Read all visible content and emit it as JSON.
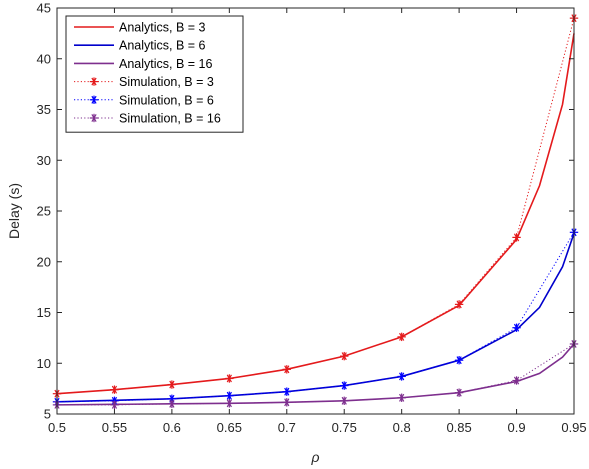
{
  "chart_data": {
    "type": "line",
    "title": "",
    "xlabel": "ρ",
    "ylabel": "Delay (s)",
    "xlim": [
      0.5,
      0.95
    ],
    "ylim": [
      5,
      45
    ],
    "xticks": [
      "0.5",
      "0.55",
      "0.6",
      "0.65",
      "0.7",
      "0.75",
      "0.8",
      "0.85",
      "0.9",
      "0.95"
    ],
    "yticks": [
      "5",
      "10",
      "15",
      "20",
      "25",
      "30",
      "35",
      "40",
      "45"
    ],
    "grid": false,
    "legend_position": "top-left",
    "x": [
      0.5,
      0.55,
      0.6,
      0.65,
      0.7,
      0.75,
      0.8,
      0.85,
      0.9,
      0.95
    ],
    "series": [
      {
        "name": "Analytics, B = 3",
        "style": "solid",
        "color": "#e41a1c",
        "x": [
          0.5,
          0.55,
          0.6,
          0.65,
          0.7,
          0.75,
          0.8,
          0.85,
          0.9,
          0.92,
          0.94,
          0.95
        ],
        "values": [
          7.0,
          7.4,
          7.9,
          8.5,
          9.4,
          10.7,
          12.6,
          15.7,
          22.2,
          27.5,
          35.5,
          42.5
        ]
      },
      {
        "name": "Analytics, B = 6",
        "style": "solid",
        "color": "#0000cc",
        "x": [
          0.5,
          0.55,
          0.6,
          0.65,
          0.7,
          0.75,
          0.8,
          0.85,
          0.9,
          0.92,
          0.94,
          0.95
        ],
        "values": [
          6.2,
          6.35,
          6.5,
          6.8,
          7.2,
          7.8,
          8.7,
          10.3,
          13.3,
          15.5,
          19.5,
          22.8
        ]
      },
      {
        "name": "Analytics, B = 16",
        "style": "solid",
        "color": "#7e2f8e",
        "x": [
          0.5,
          0.55,
          0.6,
          0.65,
          0.7,
          0.75,
          0.8,
          0.85,
          0.9,
          0.92,
          0.94,
          0.95
        ],
        "values": [
          5.9,
          5.95,
          6.0,
          6.05,
          6.15,
          6.3,
          6.6,
          7.1,
          8.2,
          9.0,
          10.6,
          11.9
        ]
      },
      {
        "name": "Simulation, B = 3",
        "style": "dotted",
        "color": "#e41a1c",
        "values": [
          7.0,
          7.4,
          7.9,
          8.5,
          9.4,
          10.7,
          12.6,
          15.8,
          22.4,
          44.0
        ]
      },
      {
        "name": "Simulation, B = 6",
        "style": "dotted",
        "color": "#0000ff",
        "values": [
          6.2,
          6.3,
          6.5,
          6.8,
          7.2,
          7.8,
          8.7,
          10.3,
          13.5,
          22.9
        ]
      },
      {
        "name": "Simulation, B = 16",
        "style": "dotted",
        "color": "#7e2f8e",
        "values": [
          5.9,
          5.9,
          6.0,
          6.05,
          6.15,
          6.3,
          6.6,
          7.1,
          8.3,
          11.9
        ]
      }
    ]
  }
}
